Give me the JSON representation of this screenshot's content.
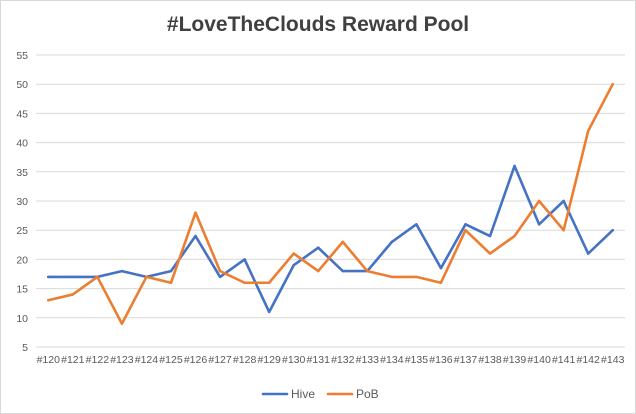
{
  "chart_data": {
    "type": "line",
    "title": "#LoveTheClouds Reward Pool",
    "xlabel": "",
    "ylabel": "",
    "categories": [
      "#120",
      "#121",
      "#122",
      "#123",
      "#124",
      "#125",
      "#126",
      "#127",
      "#128",
      "#129",
      "#130",
      "#131",
      "#132",
      "#133",
      "#134",
      "#135",
      "#136",
      "#137",
      "#138",
      "#139",
      "#140",
      "#141",
      "#142",
      "#143"
    ],
    "y_ticks": [
      5,
      10,
      15,
      20,
      25,
      30,
      35,
      40,
      45,
      50,
      55
    ],
    "ylim": [
      5,
      55
    ],
    "grid": "horizontal",
    "legend_position": "bottom",
    "series": [
      {
        "name": "Hive",
        "color": "#4472c4",
        "values": [
          17,
          17,
          17,
          18,
          17,
          18,
          24,
          17,
          20,
          11,
          19,
          22,
          18,
          18,
          23,
          26,
          18.5,
          26,
          24,
          36,
          26,
          30,
          21,
          25
        ]
      },
      {
        "name": "PoB",
        "color": "#ed7d31",
        "values": [
          13,
          14,
          17,
          9,
          17,
          16,
          28,
          18,
          16,
          16,
          21,
          18,
          23,
          18,
          17,
          17,
          16,
          25,
          21,
          24,
          30,
          25,
          42,
          50
        ]
      }
    ]
  }
}
